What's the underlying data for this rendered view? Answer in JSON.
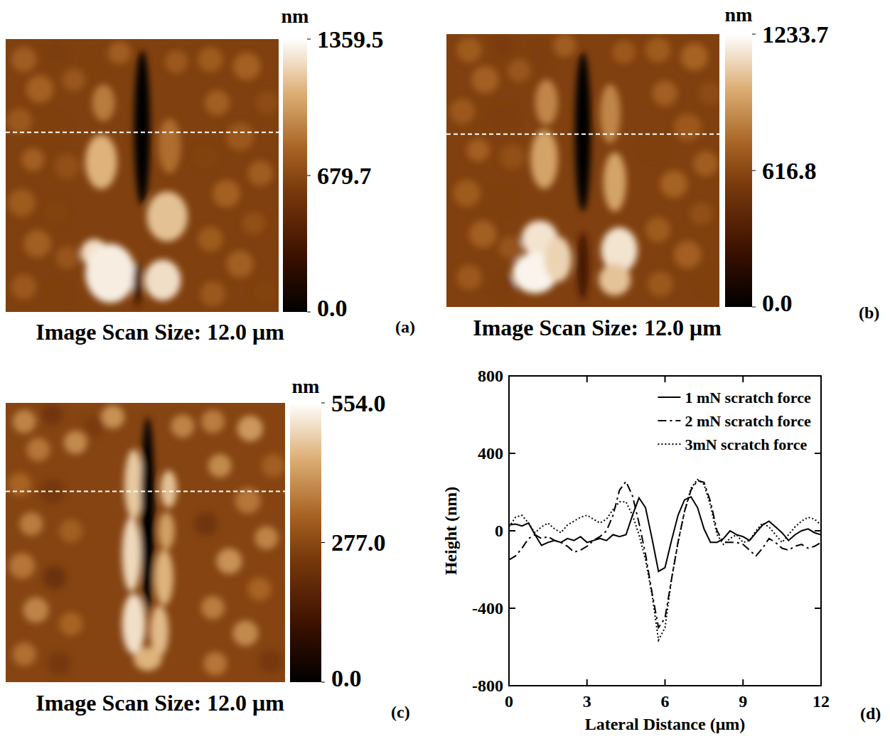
{
  "chart_data": [
    {
      "type": "image",
      "panel": "(a)",
      "caption": "Image Scan Size: 12.0 μm",
      "xlim": [
        0,
        12
      ],
      "ylim": [
        0,
        12
      ],
      "base_height": 640,
      "profile_y": 4.1,
      "colorbar": {
        "title": "nm",
        "range": [
          0,
          1359.5
        ],
        "ticks": [
          {
            "value": 0,
            "label": "0.0"
          },
          679.7,
          1359.5
        ]
      },
      "features": [
        {
          "x": 4.3,
          "y": 2.8,
          "rx": 0.5,
          "ry": 0.8,
          "height": 900
        },
        {
          "x": 4.2,
          "y": 5.4,
          "rx": 0.7,
          "ry": 1.2,
          "height": 1100
        },
        {
          "x": 3.9,
          "y": 9.4,
          "rx": 0.6,
          "ry": 0.6,
          "height": 1250
        },
        {
          "x": 4.6,
          "y": 10.3,
          "rx": 1.1,
          "ry": 1.3,
          "height": 1300
        },
        {
          "x": 7.2,
          "y": 4.7,
          "rx": 0.5,
          "ry": 1.2,
          "height": 850
        },
        {
          "x": 7.1,
          "y": 7.8,
          "rx": 0.9,
          "ry": 1.1,
          "height": 1150
        },
        {
          "x": 6.9,
          "y": 10.6,
          "rx": 0.8,
          "ry": 0.9,
          "height": 1250
        },
        {
          "x": 6.0,
          "y": 3.9,
          "rx": 0.35,
          "ry": 3.4,
          "height": 0
        },
        {
          "x": 5.8,
          "y": 10.8,
          "rx": 0.2,
          "ry": 1.0,
          "height": 350
        }
      ],
      "grains": [
        {
          "x": 0.8,
          "y": 0.9,
          "r": 0.55,
          "height": 780
        },
        {
          "x": 2.2,
          "y": 0.6,
          "r": 0.5,
          "height": 620
        },
        {
          "x": 1.5,
          "y": 2.2,
          "r": 0.6,
          "height": 800
        },
        {
          "x": 3.0,
          "y": 1.8,
          "r": 0.5,
          "height": 750
        },
        {
          "x": 0.6,
          "y": 3.6,
          "r": 0.55,
          "height": 760
        },
        {
          "x": 2.1,
          "y": 3.9,
          "r": 0.6,
          "height": 640
        },
        {
          "x": 1.2,
          "y": 5.3,
          "r": 0.5,
          "height": 790
        },
        {
          "x": 2.7,
          "y": 5.6,
          "r": 0.55,
          "height": 720
        },
        {
          "x": 0.7,
          "y": 7.2,
          "r": 0.6,
          "height": 770
        },
        {
          "x": 2.2,
          "y": 7.6,
          "r": 0.5,
          "height": 650
        },
        {
          "x": 1.4,
          "y": 9.0,
          "r": 0.6,
          "height": 790
        },
        {
          "x": 2.7,
          "y": 9.6,
          "r": 0.5,
          "height": 740
        },
        {
          "x": 0.8,
          "y": 10.9,
          "r": 0.55,
          "height": 760
        },
        {
          "x": 2.3,
          "y": 11.3,
          "r": 0.5,
          "height": 640
        },
        {
          "x": 9.0,
          "y": 0.9,
          "r": 0.55,
          "height": 770
        },
        {
          "x": 10.6,
          "y": 1.2,
          "r": 0.6,
          "height": 800
        },
        {
          "x": 11.5,
          "y": 2.8,
          "r": 0.5,
          "height": 700
        },
        {
          "x": 9.3,
          "y": 2.8,
          "r": 0.55,
          "height": 790
        },
        {
          "x": 10.3,
          "y": 4.3,
          "r": 0.6,
          "height": 760
        },
        {
          "x": 8.8,
          "y": 5.2,
          "r": 0.5,
          "height": 650
        },
        {
          "x": 11.2,
          "y": 5.9,
          "r": 0.55,
          "height": 780
        },
        {
          "x": 9.7,
          "y": 6.8,
          "r": 0.6,
          "height": 800
        },
        {
          "x": 10.9,
          "y": 8.1,
          "r": 0.5,
          "height": 720
        },
        {
          "x": 9.0,
          "y": 8.8,
          "r": 0.55,
          "height": 770
        },
        {
          "x": 10.3,
          "y": 9.9,
          "r": 0.6,
          "height": 790
        },
        {
          "x": 11.4,
          "y": 11.1,
          "r": 0.5,
          "height": 650
        },
        {
          "x": 9.1,
          "y": 11.2,
          "r": 0.55,
          "height": 760
        },
        {
          "x": 5.0,
          "y": 0.6,
          "r": 0.5,
          "height": 780
        },
        {
          "x": 7.5,
          "y": 1.0,
          "r": 0.5,
          "height": 760
        },
        {
          "x": 4.0,
          "y": 1.0,
          "r": 0.45,
          "height": 640
        }
      ]
    },
    {
      "type": "image",
      "panel": "(b)",
      "caption": "Image Scan Size: 12.0 μm",
      "xlim": [
        0,
        12
      ],
      "ylim": [
        0,
        12
      ],
      "base_height": 580,
      "profile_y": 4.4,
      "colorbar": {
        "title": "nm",
        "range": [
          0,
          1233.7
        ],
        "ticks": [
          {
            "value": 0,
            "label": "0.0"
          },
          616.8,
          1233.7
        ]
      },
      "features": [
        {
          "x": 4.4,
          "y": 3.0,
          "rx": 0.5,
          "ry": 1.0,
          "height": 850
        },
        {
          "x": 4.3,
          "y": 5.5,
          "rx": 0.6,
          "ry": 1.3,
          "height": 950
        },
        {
          "x": 4.1,
          "y": 9.0,
          "rx": 0.8,
          "ry": 0.8,
          "height": 1150
        },
        {
          "x": 3.9,
          "y": 10.5,
          "rx": 1.0,
          "ry": 0.9,
          "height": 1200
        },
        {
          "x": 4.9,
          "y": 9.9,
          "rx": 0.6,
          "ry": 1.0,
          "height": 1100
        },
        {
          "x": 7.2,
          "y": 3.5,
          "rx": 0.45,
          "ry": 1.3,
          "height": 850
        },
        {
          "x": 7.4,
          "y": 6.5,
          "rx": 0.5,
          "ry": 1.3,
          "height": 950
        },
        {
          "x": 7.6,
          "y": 9.5,
          "rx": 0.8,
          "ry": 1.0,
          "height": 1150
        },
        {
          "x": 7.4,
          "y": 10.8,
          "rx": 0.7,
          "ry": 0.7,
          "height": 1050
        },
        {
          "x": 6.0,
          "y": 4.3,
          "rx": 0.35,
          "ry": 3.5,
          "height": 0
        },
        {
          "x": 6.0,
          "y": 10.2,
          "rx": 0.25,
          "ry": 1.5,
          "height": 300
        }
      ],
      "grains": [
        {
          "x": 1.0,
          "y": 0.7,
          "r": 0.55,
          "height": 700
        },
        {
          "x": 2.5,
          "y": 0.5,
          "r": 0.5,
          "height": 560
        },
        {
          "x": 1.7,
          "y": 2.0,
          "r": 0.6,
          "height": 720
        },
        {
          "x": 3.2,
          "y": 1.6,
          "r": 0.5,
          "height": 680
        },
        {
          "x": 0.7,
          "y": 3.4,
          "r": 0.55,
          "height": 690
        },
        {
          "x": 2.4,
          "y": 3.7,
          "r": 0.6,
          "height": 570
        },
        {
          "x": 1.4,
          "y": 5.1,
          "r": 0.5,
          "height": 720
        },
        {
          "x": 2.9,
          "y": 5.4,
          "r": 0.55,
          "height": 650
        },
        {
          "x": 0.9,
          "y": 7.0,
          "r": 0.6,
          "height": 700
        },
        {
          "x": 2.4,
          "y": 7.4,
          "r": 0.5,
          "height": 580
        },
        {
          "x": 1.6,
          "y": 8.8,
          "r": 0.6,
          "height": 720
        },
        {
          "x": 2.8,
          "y": 9.4,
          "r": 0.5,
          "height": 670
        },
        {
          "x": 1.0,
          "y": 10.7,
          "r": 0.55,
          "height": 690
        },
        {
          "x": 2.5,
          "y": 11.1,
          "r": 0.5,
          "height": 570
        },
        {
          "x": 9.3,
          "y": 0.7,
          "r": 0.55,
          "height": 700
        },
        {
          "x": 10.9,
          "y": 1.0,
          "r": 0.6,
          "height": 730
        },
        {
          "x": 11.6,
          "y": 2.6,
          "r": 0.5,
          "height": 630
        },
        {
          "x": 9.6,
          "y": 2.6,
          "r": 0.55,
          "height": 720
        },
        {
          "x": 10.6,
          "y": 4.1,
          "r": 0.6,
          "height": 690
        },
        {
          "x": 9.1,
          "y": 5.0,
          "r": 0.5,
          "height": 580
        },
        {
          "x": 11.4,
          "y": 5.7,
          "r": 0.55,
          "height": 710
        },
        {
          "x": 10.0,
          "y": 6.6,
          "r": 0.6,
          "height": 730
        },
        {
          "x": 11.2,
          "y": 7.9,
          "r": 0.5,
          "height": 650
        },
        {
          "x": 9.3,
          "y": 8.6,
          "r": 0.55,
          "height": 700
        },
        {
          "x": 10.6,
          "y": 9.7,
          "r": 0.6,
          "height": 720
        },
        {
          "x": 11.5,
          "y": 10.9,
          "r": 0.5,
          "height": 580
        },
        {
          "x": 9.4,
          "y": 11.0,
          "r": 0.55,
          "height": 690
        },
        {
          "x": 5.2,
          "y": 0.5,
          "r": 0.5,
          "height": 710
        },
        {
          "x": 7.8,
          "y": 0.8,
          "r": 0.5,
          "height": 690
        },
        {
          "x": 4.2,
          "y": 0.9,
          "r": 0.45,
          "height": 570
        }
      ]
    },
    {
      "type": "image",
      "panel": "(c)",
      "caption": "Image Scan Size: 12.0 μm",
      "xlim": [
        0,
        12
      ],
      "ylim": [
        0,
        12
      ],
      "base_height": 270,
      "profile_y": 3.8,
      "colorbar": {
        "title": "nm",
        "range": [
          0,
          554
        ],
        "ticks": [
          {
            "value": 0,
            "label": "0.0"
          },
          {
            "value": 277,
            "label": "277.0"
          },
          {
            "value": 554,
            "label": "554.0"
          }
        ]
      },
      "features": [
        {
          "x": 5.5,
          "y": 3.5,
          "rx": 0.4,
          "ry": 1.5,
          "height": 480
        },
        {
          "x": 5.4,
          "y": 6.5,
          "rx": 0.4,
          "ry": 1.6,
          "height": 500
        },
        {
          "x": 5.5,
          "y": 9.5,
          "rx": 0.5,
          "ry": 1.3,
          "height": 510
        },
        {
          "x": 7.0,
          "y": 3.7,
          "rx": 0.35,
          "ry": 0.8,
          "height": 470
        },
        {
          "x": 6.9,
          "y": 5.5,
          "rx": 0.35,
          "ry": 0.8,
          "height": 420
        },
        {
          "x": 6.8,
          "y": 7.5,
          "rx": 0.4,
          "ry": 1.2,
          "height": 450
        },
        {
          "x": 6.6,
          "y": 9.8,
          "rx": 0.4,
          "ry": 1.1,
          "height": 460
        },
        {
          "x": 6.1,
          "y": 11.0,
          "rx": 0.6,
          "ry": 0.5,
          "height": 450
        },
        {
          "x": 6.1,
          "y": 4.8,
          "rx": 0.3,
          "ry": 4.2,
          "height": 0
        }
      ],
      "grains": [
        {
          "x": 0.8,
          "y": 0.8,
          "r": 0.5,
          "height": 380
        },
        {
          "x": 2.0,
          "y": 0.5,
          "r": 0.45,
          "height": 230
        },
        {
          "x": 1.4,
          "y": 2.0,
          "r": 0.5,
          "height": 360
        },
        {
          "x": 3.0,
          "y": 1.7,
          "r": 0.5,
          "height": 390
        },
        {
          "x": 0.6,
          "y": 3.5,
          "r": 0.5,
          "height": 330
        },
        {
          "x": 2.0,
          "y": 3.8,
          "r": 0.55,
          "height": 240
        },
        {
          "x": 1.1,
          "y": 5.2,
          "r": 0.5,
          "height": 370
        },
        {
          "x": 2.8,
          "y": 5.5,
          "r": 0.5,
          "height": 320
        },
        {
          "x": 0.7,
          "y": 7.0,
          "r": 0.55,
          "height": 360
        },
        {
          "x": 2.1,
          "y": 7.5,
          "r": 0.5,
          "height": 220
        },
        {
          "x": 1.3,
          "y": 8.9,
          "r": 0.55,
          "height": 380
        },
        {
          "x": 2.8,
          "y": 9.5,
          "r": 0.5,
          "height": 330
        },
        {
          "x": 0.8,
          "y": 10.8,
          "r": 0.5,
          "height": 350
        },
        {
          "x": 2.3,
          "y": 11.2,
          "r": 0.5,
          "height": 240
        },
        {
          "x": 8.9,
          "y": 0.8,
          "r": 0.5,
          "height": 370
        },
        {
          "x": 10.5,
          "y": 1.1,
          "r": 0.55,
          "height": 410
        },
        {
          "x": 11.5,
          "y": 2.7,
          "r": 0.5,
          "height": 320
        },
        {
          "x": 9.2,
          "y": 2.7,
          "r": 0.5,
          "height": 390
        },
        {
          "x": 10.4,
          "y": 4.2,
          "r": 0.55,
          "height": 360
        },
        {
          "x": 8.6,
          "y": 5.2,
          "r": 0.5,
          "height": 230
        },
        {
          "x": 11.2,
          "y": 5.8,
          "r": 0.5,
          "height": 380
        },
        {
          "x": 9.6,
          "y": 6.8,
          "r": 0.55,
          "height": 400
        },
        {
          "x": 10.9,
          "y": 8.0,
          "r": 0.5,
          "height": 330
        },
        {
          "x": 8.9,
          "y": 8.8,
          "r": 0.5,
          "height": 370
        },
        {
          "x": 10.3,
          "y": 9.9,
          "r": 0.55,
          "height": 390
        },
        {
          "x": 11.4,
          "y": 11.1,
          "r": 0.5,
          "height": 240
        },
        {
          "x": 9.0,
          "y": 11.2,
          "r": 0.5,
          "height": 360
        },
        {
          "x": 4.6,
          "y": 0.6,
          "r": 0.5,
          "height": 400
        },
        {
          "x": 7.6,
          "y": 1.0,
          "r": 0.5,
          "height": 380
        },
        {
          "x": 3.8,
          "y": 1.0,
          "r": 0.45,
          "height": 250
        }
      ]
    },
    {
      "type": "line",
      "panel": "(d)",
      "x_label": "Lateral Distance (μm)",
      "y_label": "Height (nm)",
      "xlim": [
        0,
        12
      ],
      "ylim": [
        -800,
        800
      ],
      "xticks": [
        0,
        3,
        6,
        9,
        12
      ],
      "yticks": [
        -800,
        -400,
        0,
        400,
        800
      ],
      "grid": false,
      "legend": "upper right",
      "x": [
        0,
        0.25,
        0.5,
        0.75,
        1,
        1.25,
        1.5,
        1.75,
        2,
        2.25,
        2.5,
        2.75,
        3,
        3.25,
        3.5,
        3.75,
        4,
        4.25,
        4.5,
        4.75,
        5,
        5.25,
        5.5,
        5.75,
        6,
        6.25,
        6.5,
        6.75,
        7,
        7.25,
        7.5,
        7.75,
        8,
        8.25,
        8.5,
        8.75,
        9,
        9.25,
        9.5,
        9.75,
        10,
        10.25,
        10.5,
        10.75,
        11,
        11.25,
        11.5,
        11.75,
        12
      ],
      "series": [
        {
          "name": "1 mN scratch force",
          "color": "#000000",
          "line_style": "solid",
          "values": [
            30,
            35,
            25,
            40,
            -20,
            -75,
            -60,
            -50,
            -60,
            -40,
            -50,
            -30,
            -60,
            -50,
            -40,
            -50,
            -20,
            -30,
            -20,
            80,
            170,
            120,
            -40,
            -210,
            -190,
            -50,
            80,
            160,
            175,
            120,
            10,
            -60,
            -60,
            -40,
            0,
            -20,
            -30,
            -50,
            -10,
            30,
            50,
            20,
            -10,
            -50,
            -20,
            0,
            10,
            -10,
            -20
          ]
        },
        {
          "name": "2 mN scratch force",
          "color": "#000000",
          "line_style": "dashdot",
          "values": [
            -150,
            -130,
            -90,
            -40,
            -20,
            -40,
            -30,
            -50,
            -60,
            -80,
            -110,
            -100,
            -80,
            -50,
            -30,
            0,
            80,
            210,
            255,
            180,
            40,
            -120,
            -320,
            -500,
            -450,
            -250,
            -60,
            100,
            210,
            260,
            250,
            150,
            0,
            -60,
            -60,
            -60,
            -70,
            -100,
            -130,
            -90,
            -40,
            -60,
            -90,
            -100,
            -80,
            -70,
            -90,
            -80,
            -60
          ]
        },
        {
          "name": "3mN scratch force",
          "color": "#000000",
          "line_style": "dotted",
          "values": [
            20,
            70,
            80,
            40,
            -10,
            20,
            40,
            10,
            -10,
            30,
            50,
            70,
            80,
            60,
            40,
            60,
            110,
            150,
            150,
            80,
            -20,
            -150,
            -330,
            -565,
            -500,
            -250,
            -60,
            100,
            220,
            265,
            240,
            130,
            -20,
            -70,
            -40,
            -20,
            -60,
            -50,
            0,
            40,
            20,
            -20,
            -60,
            -20,
            20,
            50,
            70,
            60,
            30
          ]
        }
      ]
    }
  ]
}
